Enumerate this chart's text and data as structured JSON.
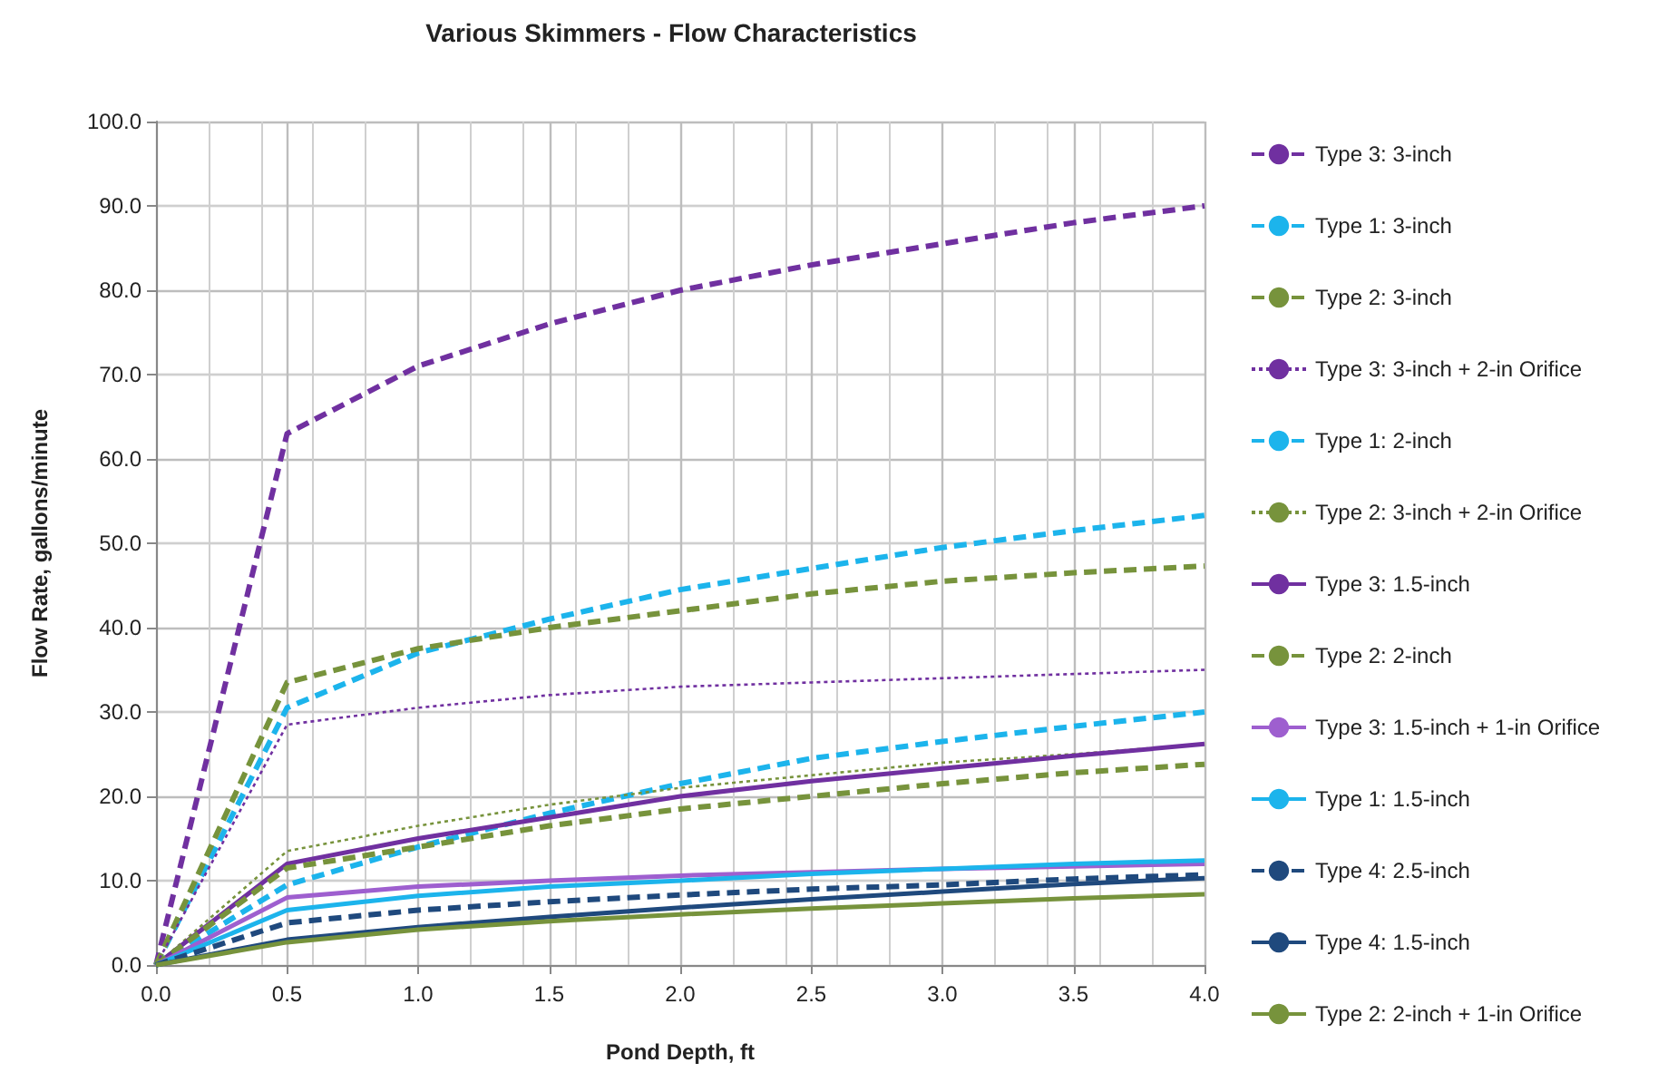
{
  "chart_data": {
    "type": "line",
    "title": "Various Skimmers - Flow Characteristics",
    "xlabel": "Pond Depth, ft",
    "ylabel": "Flow Rate, gallons/minute",
    "x": [
      0,
      0.5,
      1,
      1.5,
      2,
      2.5,
      3,
      3.5,
      4
    ],
    "series": [
      {
        "name": "Type 3: 3-inch",
        "color": "#7030a0",
        "line_style": "dashed",
        "values": [
          0,
          63,
          71,
          76,
          80,
          83,
          85.5,
          88,
          90
        ]
      },
      {
        "name": "Type 1: 3-inch",
        "color": "#1cb4ec",
        "line_style": "dashed",
        "values": [
          0,
          30.5,
          37,
          41,
          44.5,
          47,
          49.5,
          51.5,
          53.3
        ]
      },
      {
        "name": "Type 2: 3-inch",
        "color": "#77933c",
        "line_style": "dashed",
        "values": [
          0,
          33.5,
          37.5,
          40,
          42,
          44,
          45.5,
          46.5,
          47.3
        ]
      },
      {
        "name": "Type 3: 3-inch + 2-in Orifice",
        "color": "#7030a0",
        "line_style": "dotted",
        "values": [
          0,
          28.5,
          30.5,
          32,
          33,
          33.5,
          34,
          34.5,
          35
        ]
      },
      {
        "name": "Type 1: 2-inch",
        "color": "#1cb4ec",
        "line_style": "dashed",
        "values": [
          0,
          9.5,
          14,
          18,
          21.5,
          24.5,
          26.5,
          28.3,
          30
        ]
      },
      {
        "name": "Type 2: 3-inch + 2-in Orifice",
        "color": "#77933c",
        "line_style": "dotted",
        "values": [
          0,
          13.5,
          16.5,
          19,
          21,
          22.5,
          24,
          25,
          26.2
        ]
      },
      {
        "name": "Type 3: 1.5-inch",
        "color": "#7030a0",
        "line_style": "solid",
        "values": [
          0,
          12,
          15,
          17.5,
          20,
          21.8,
          23.3,
          24.8,
          26.2
        ]
      },
      {
        "name": "Type 2: 2-inch",
        "color": "#77933c",
        "line_style": "dashed",
        "values": [
          0,
          11.5,
          14,
          16.5,
          18.5,
          20,
          21.5,
          22.8,
          23.8
        ]
      },
      {
        "name": "Type 3: 1.5-inch + 1-in Orifice",
        "color": "#9e5fcf",
        "line_style": "solid",
        "values": [
          0,
          8,
          9.3,
          10,
          10.6,
          11,
          11.4,
          11.7,
          12
        ]
      },
      {
        "name": "Type 1: 1.5-inch",
        "color": "#1cb4ec",
        "line_style": "solid",
        "values": [
          0,
          6.5,
          8.2,
          9.3,
          10,
          10.8,
          11.4,
          12,
          12.4
        ]
      },
      {
        "name": "Type 4: 2.5-inch",
        "color": "#1f497d",
        "line_style": "dashed",
        "values": [
          0,
          5,
          6.5,
          7.5,
          8.3,
          9,
          9.5,
          10.2,
          10.7
        ]
      },
      {
        "name": "Type 4: 1.5-inch",
        "color": "#1f497d",
        "line_style": "solid",
        "values": [
          0,
          3,
          4.5,
          5.7,
          6.8,
          7.8,
          8.7,
          9.6,
          10.3
        ]
      },
      {
        "name": "Type 2: 2-inch + 1-in Orifice",
        "color": "#77933c",
        "line_style": "solid",
        "values": [
          0,
          2.7,
          4.2,
          5.2,
          6,
          6.7,
          7.3,
          7.9,
          8.4
        ]
      }
    ],
    "xlim": [
      0,
      4
    ],
    "ylim": [
      0,
      100
    ],
    "xticks": [
      {
        "value": 0,
        "label": "0.0"
      },
      {
        "value": 0.5,
        "label": "0.5"
      },
      {
        "value": 1,
        "label": "1.0"
      },
      {
        "value": 1.5,
        "label": "1.5"
      },
      {
        "value": 2,
        "label": "2.0"
      },
      {
        "value": 2.5,
        "label": "2.5"
      },
      {
        "value": 3,
        "label": "3.0"
      },
      {
        "value": 3.5,
        "label": "3.5"
      },
      {
        "value": 4,
        "label": "4.0"
      }
    ],
    "yticks": [
      {
        "value": 0,
        "label": "0.0"
      },
      {
        "value": 10,
        "label": "10.0"
      },
      {
        "value": 20,
        "label": "20.0"
      },
      {
        "value": 30,
        "label": "30.0"
      },
      {
        "value": 40,
        "label": "40.0"
      },
      {
        "value": 50,
        "label": "50.0"
      },
      {
        "value": 60,
        "label": "60.0"
      },
      {
        "value": 70,
        "label": "70.0"
      },
      {
        "value": 80,
        "label": "80.0"
      },
      {
        "value": 90,
        "label": "90.0"
      },
      {
        "value": 100,
        "label": "100.0"
      }
    ],
    "grid": true,
    "legend": "right",
    "marker": "none"
  }
}
